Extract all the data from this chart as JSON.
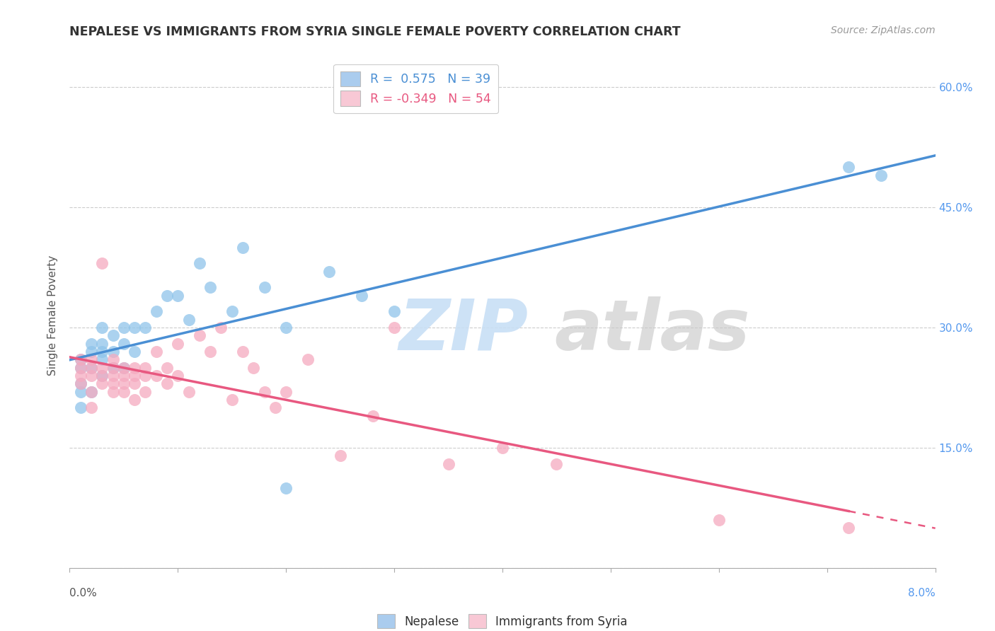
{
  "title": "NEPALESE VS IMMIGRANTS FROM SYRIA SINGLE FEMALE POVERTY CORRELATION CHART",
  "source": "Source: ZipAtlas.com",
  "ylabel": "Single Female Poverty",
  "x_range": [
    0.0,
    0.08
  ],
  "y_range": [
    0.0,
    0.63
  ],
  "y_ticks": [
    0.0,
    0.15,
    0.3,
    0.45,
    0.6
  ],
  "y_tick_labels_right": [
    "",
    "15.0%",
    "30.0%",
    "45.0%",
    "60.0%"
  ],
  "x_tick_positions": [
    0.0,
    0.01,
    0.02,
    0.03,
    0.04,
    0.05,
    0.06,
    0.07,
    0.08
  ],
  "legend_labels": [
    "Nepalese",
    "Immigrants from Syria"
  ],
  "R_nepalese": 0.575,
  "N_nepalese": 39,
  "R_syria": -0.349,
  "N_syria": 54,
  "blue_scatter_color": "#8FC4EA",
  "pink_scatter_color": "#F5AABF",
  "blue_line_color": "#4A8FD4",
  "pink_line_color": "#E85880",
  "blue_legend_color": "#AACCEE",
  "pink_legend_color": "#F8C8D5",
  "watermark_zip_color": "#C8DFF5",
  "watermark_atlas_color": "#CACACA",
  "nepalese_x": [
    0.001,
    0.001,
    0.001,
    0.001,
    0.001,
    0.002,
    0.002,
    0.002,
    0.002,
    0.003,
    0.003,
    0.003,
    0.003,
    0.003,
    0.004,
    0.004,
    0.004,
    0.005,
    0.005,
    0.005,
    0.006,
    0.006,
    0.007,
    0.008,
    0.009,
    0.01,
    0.011,
    0.012,
    0.013,
    0.015,
    0.016,
    0.018,
    0.02,
    0.02,
    0.024,
    0.027,
    0.03,
    0.072,
    0.075
  ],
  "nepalese_y": [
    0.26,
    0.25,
    0.23,
    0.22,
    0.2,
    0.28,
    0.27,
    0.25,
    0.22,
    0.3,
    0.28,
    0.27,
    0.26,
    0.24,
    0.29,
    0.27,
    0.25,
    0.3,
    0.28,
    0.25,
    0.3,
    0.27,
    0.3,
    0.32,
    0.34,
    0.34,
    0.31,
    0.38,
    0.35,
    0.32,
    0.4,
    0.35,
    0.3,
    0.1,
    0.37,
    0.34,
    0.32,
    0.5,
    0.49
  ],
  "syria_x": [
    0.001,
    0.001,
    0.001,
    0.001,
    0.002,
    0.002,
    0.002,
    0.002,
    0.002,
    0.003,
    0.003,
    0.003,
    0.003,
    0.004,
    0.004,
    0.004,
    0.004,
    0.004,
    0.005,
    0.005,
    0.005,
    0.005,
    0.006,
    0.006,
    0.006,
    0.006,
    0.007,
    0.007,
    0.007,
    0.008,
    0.008,
    0.009,
    0.009,
    0.01,
    0.01,
    0.011,
    0.012,
    0.013,
    0.014,
    0.015,
    0.016,
    0.017,
    0.018,
    0.019,
    0.02,
    0.022,
    0.025,
    0.028,
    0.03,
    0.035,
    0.04,
    0.045,
    0.06,
    0.072
  ],
  "syria_y": [
    0.26,
    0.25,
    0.24,
    0.23,
    0.26,
    0.25,
    0.24,
    0.22,
    0.2,
    0.25,
    0.24,
    0.23,
    0.38,
    0.26,
    0.25,
    0.24,
    0.23,
    0.22,
    0.25,
    0.24,
    0.23,
    0.22,
    0.25,
    0.24,
    0.23,
    0.21,
    0.25,
    0.24,
    0.22,
    0.27,
    0.24,
    0.25,
    0.23,
    0.28,
    0.24,
    0.22,
    0.29,
    0.27,
    0.3,
    0.21,
    0.27,
    0.25,
    0.22,
    0.2,
    0.22,
    0.26,
    0.14,
    0.19,
    0.3,
    0.13,
    0.15,
    0.13,
    0.06,
    0.05
  ]
}
